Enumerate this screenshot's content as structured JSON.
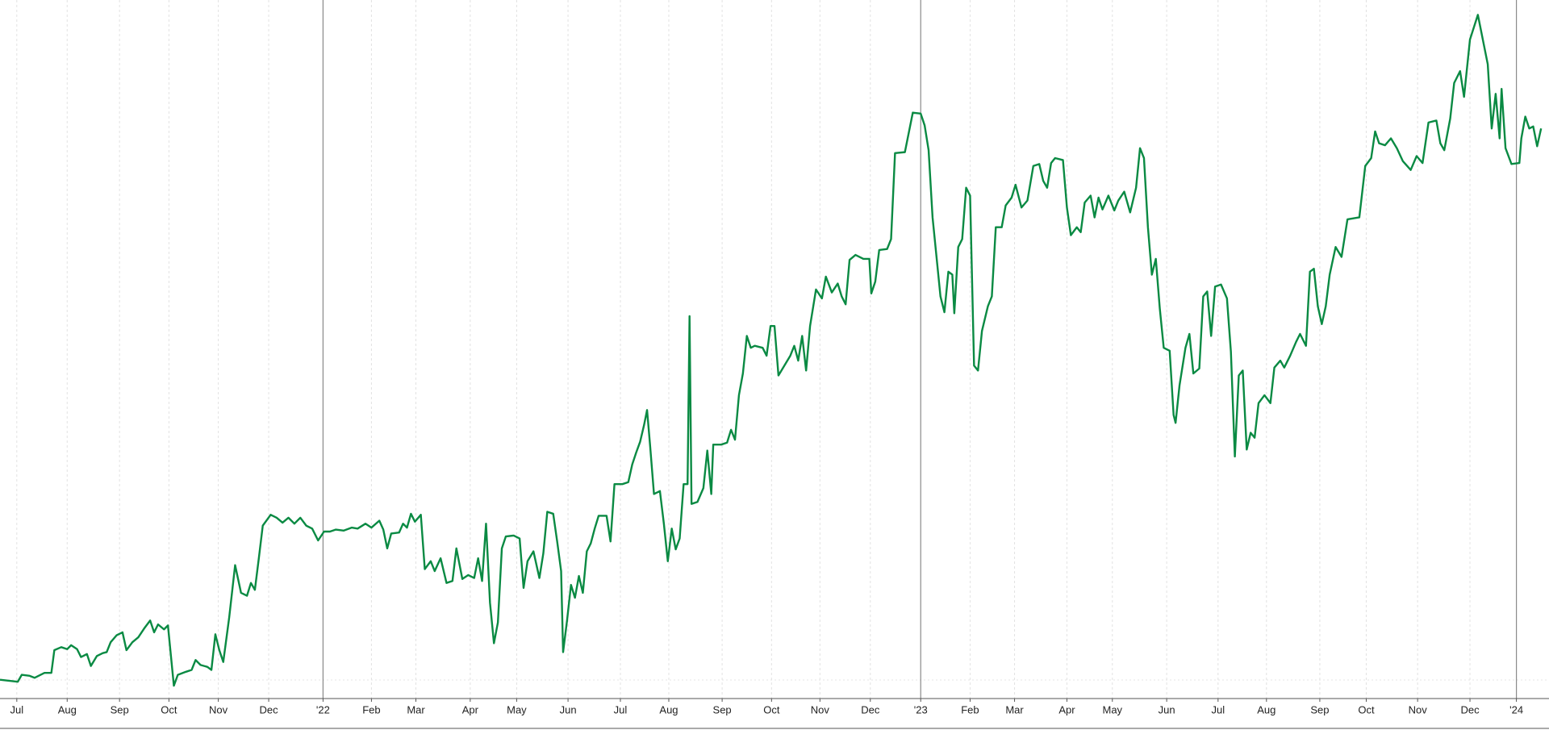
{
  "chart_data": {
    "type": "line",
    "color": "#0a8a43",
    "grid": true,
    "xlim": [
      0,
      1568
    ],
    "ylim": [
      -19,
      688
    ],
    "xticks": [
      {
        "value": 17,
        "label": "Jul"
      },
      {
        "value": 68,
        "label": "Aug"
      },
      {
        "value": 121,
        "label": "Sep"
      },
      {
        "value": 171,
        "label": "Oct"
      },
      {
        "value": 221,
        "label": "Nov"
      },
      {
        "value": 272,
        "label": "Dec"
      },
      {
        "value": 327,
        "label": "'22"
      },
      {
        "value": 376,
        "label": "Feb"
      },
      {
        "value": 421,
        "label": "Mar"
      },
      {
        "value": 476,
        "label": "Apr"
      },
      {
        "value": 523,
        "label": "May"
      },
      {
        "value": 575,
        "label": "Jun"
      },
      {
        "value": 628,
        "label": "Jul"
      },
      {
        "value": 677,
        "label": "Aug"
      },
      {
        "value": 731,
        "label": "Sep"
      },
      {
        "value": 781,
        "label": "Oct"
      },
      {
        "value": 830,
        "label": "Nov"
      },
      {
        "value": 881,
        "label": "Dec"
      },
      {
        "value": 932,
        "label": "'23"
      },
      {
        "value": 982,
        "label": "Feb"
      },
      {
        "value": 1027,
        "label": "Mar"
      },
      {
        "value": 1080,
        "label": "Apr"
      },
      {
        "value": 1126,
        "label": "May"
      },
      {
        "value": 1181,
        "label": "Jun"
      },
      {
        "value": 1233,
        "label": "Jul"
      },
      {
        "value": 1282,
        "label": "Aug"
      },
      {
        "value": 1336,
        "label": "Sep"
      },
      {
        "value": 1383,
        "label": "Oct"
      },
      {
        "value": 1435,
        "label": "Nov"
      },
      {
        "value": 1488,
        "label": "Dec"
      },
      {
        "value": 1535,
        "label": "'24"
      }
    ],
    "x": [
      0,
      18,
      22,
      30,
      35,
      45,
      52,
      55,
      62,
      68,
      72,
      78,
      82,
      88,
      92,
      98,
      104,
      108,
      112,
      118,
      124,
      128,
      134,
      140,
      146,
      152,
      156,
      160,
      166,
      170,
      176,
      180,
      188,
      194,
      198,
      203,
      210,
      214,
      218,
      222,
      226,
      232,
      238,
      244,
      250,
      254,
      258,
      262,
      266,
      274,
      280,
      286,
      292,
      298,
      304,
      310,
      316,
      322,
      328,
      334,
      340,
      348,
      356,
      362,
      370,
      376,
      384,
      388,
      392,
      396,
      404,
      408,
      412,
      416,
      420,
      426,
      430,
      436,
      440,
      446,
      452,
      458,
      462,
      468,
      474,
      480,
      484,
      488,
      492,
      496,
      500,
      504,
      508,
      512,
      520,
      526,
      530,
      534,
      540,
      546,
      550,
      554,
      560,
      564,
      568,
      570,
      574,
      578,
      582,
      586,
      590,
      594,
      598,
      602,
      606,
      614,
      618,
      622,
      630,
      636,
      640,
      644,
      648,
      652,
      655,
      658,
      662,
      668,
      672,
      676,
      680,
      684,
      688,
      692,
      696,
      698,
      700,
      706,
      712,
      716,
      720,
      722,
      730,
      736,
      740,
      744,
      748,
      752,
      756,
      760,
      764,
      772,
      776,
      780,
      784,
      788,
      794,
      800,
      804,
      808,
      812,
      816,
      820,
      826,
      832,
      836,
      842,
      848,
      852,
      856,
      860,
      866,
      874,
      880,
      882,
      886,
      890,
      898,
      902,
      906,
      916,
      924,
      932,
      936,
      940,
      944,
      948,
      952,
      956,
      960,
      964,
      966,
      970,
      974,
      978,
      982,
      986,
      990,
      994,
      1000,
      1004,
      1008,
      1014,
      1018,
      1024,
      1028,
      1034,
      1040,
      1046,
      1052,
      1056,
      1060,
      1064,
      1068,
      1076,
      1080,
      1084,
      1090,
      1094,
      1098,
      1104,
      1108,
      1112,
      1116,
      1122,
      1128,
      1132,
      1138,
      1144,
      1150,
      1154,
      1158,
      1162,
      1166,
      1170,
      1174,
      1178,
      1184,
      1188,
      1190,
      1194,
      1200,
      1204,
      1208,
      1214,
      1218,
      1222,
      1226,
      1230,
      1236,
      1242,
      1246,
      1250,
      1254,
      1258,
      1262,
      1266,
      1270,
      1274,
      1280,
      1286,
      1290,
      1296,
      1300,
      1306,
      1312,
      1316,
      1322,
      1326,
      1330,
      1334,
      1338,
      1342,
      1346,
      1352,
      1358,
      1364,
      1376,
      1382,
      1388,
      1392,
      1396,
      1402,
      1408,
      1414,
      1420,
      1428,
      1434,
      1440,
      1446,
      1454,
      1458,
      1462,
      1468,
      1472,
      1478,
      1482,
      1488,
      1496,
      1502,
      1506,
      1510,
      1514,
      1518,
      1520,
      1524,
      1530,
      1538,
      1540,
      1544,
      1548,
      1552,
      1556,
      1560
    ],
    "values": [
      0,
      -2,
      5,
      4,
      2,
      7,
      7,
      30,
      33,
      31,
      35,
      31,
      23,
      26,
      14,
      24,
      27,
      28,
      38,
      45,
      48,
      30,
      38,
      43,
      52,
      60,
      48,
      56,
      51,
      55,
      -6,
      5,
      8,
      10,
      20,
      15,
      13,
      10,
      46,
      30,
      18,
      63,
      116,
      88,
      85,
      98,
      91,
      123,
      156,
      167,
      164,
      159,
      164,
      158,
      164,
      156,
      153,
      141,
      150,
      150,
      152,
      151,
      154,
      153,
      158,
      154,
      161,
      152,
      133,
      148,
      149,
      158,
      154,
      168,
      160,
      167,
      112,
      120,
      110,
      123,
      98,
      100,
      133,
      102,
      106,
      103,
      123,
      100,
      158,
      78,
      37,
      58,
      133,
      145,
      146,
      143,
      93,
      120,
      130,
      103,
      128,
      170,
      168,
      140,
      110,
      28,
      60,
      96,
      83,
      105,
      88,
      130,
      138,
      153,
      166,
      166,
      140,
      198,
      198,
      200,
      218,
      230,
      241,
      258,
      273,
      238,
      188,
      191,
      158,
      120,
      153,
      132,
      143,
      198,
      198,
      368,
      178,
      180,
      194,
      232,
      188,
      238,
      238,
      240,
      253,
      243,
      288,
      310,
      348,
      336,
      338,
      336,
      328,
      358,
      358,
      308,
      318,
      328,
      338,
      323,
      348,
      313,
      358,
      395,
      386,
      408,
      392,
      401,
      388,
      380,
      425,
      430,
      426,
      426,
      391,
      403,
      435,
      436,
      446,
      533,
      534,
      574,
      573,
      561,
      536,
      468,
      428,
      388,
      372,
      413,
      410,
      371,
      438,
      446,
      498,
      490,
      318,
      313,
      353,
      378,
      388,
      458,
      458,
      480,
      488,
      501,
      478,
      485,
      520,
      522,
      505,
      498,
      523,
      528,
      526,
      478,
      450,
      458,
      453,
      483,
      490,
      468,
      488,
      476,
      490,
      475,
      485,
      494,
      473,
      498,
      538,
      528,
      458,
      410,
      426,
      376,
      336,
      333,
      268,
      260,
      298,
      336,
      350,
      310,
      315,
      388,
      393,
      348,
      398,
      400,
      386,
      332,
      226,
      308,
      313,
      233,
      250,
      245,
      280,
      288,
      280,
      316,
      323,
      316,
      328,
      342,
      350,
      338,
      413,
      416,
      378,
      360,
      378,
      410,
      438,
      428,
      466,
      468,
      520,
      528,
      555,
      543,
      541,
      548,
      538,
      525,
      516,
      530,
      523,
      564,
      566,
      543,
      536,
      568,
      604,
      616,
      590,
      648,
      673,
      643,
      623,
      558,
      593,
      548,
      598,
      538,
      522,
      523,
      548,
      570,
      558,
      560,
      540,
      558
    ]
  }
}
